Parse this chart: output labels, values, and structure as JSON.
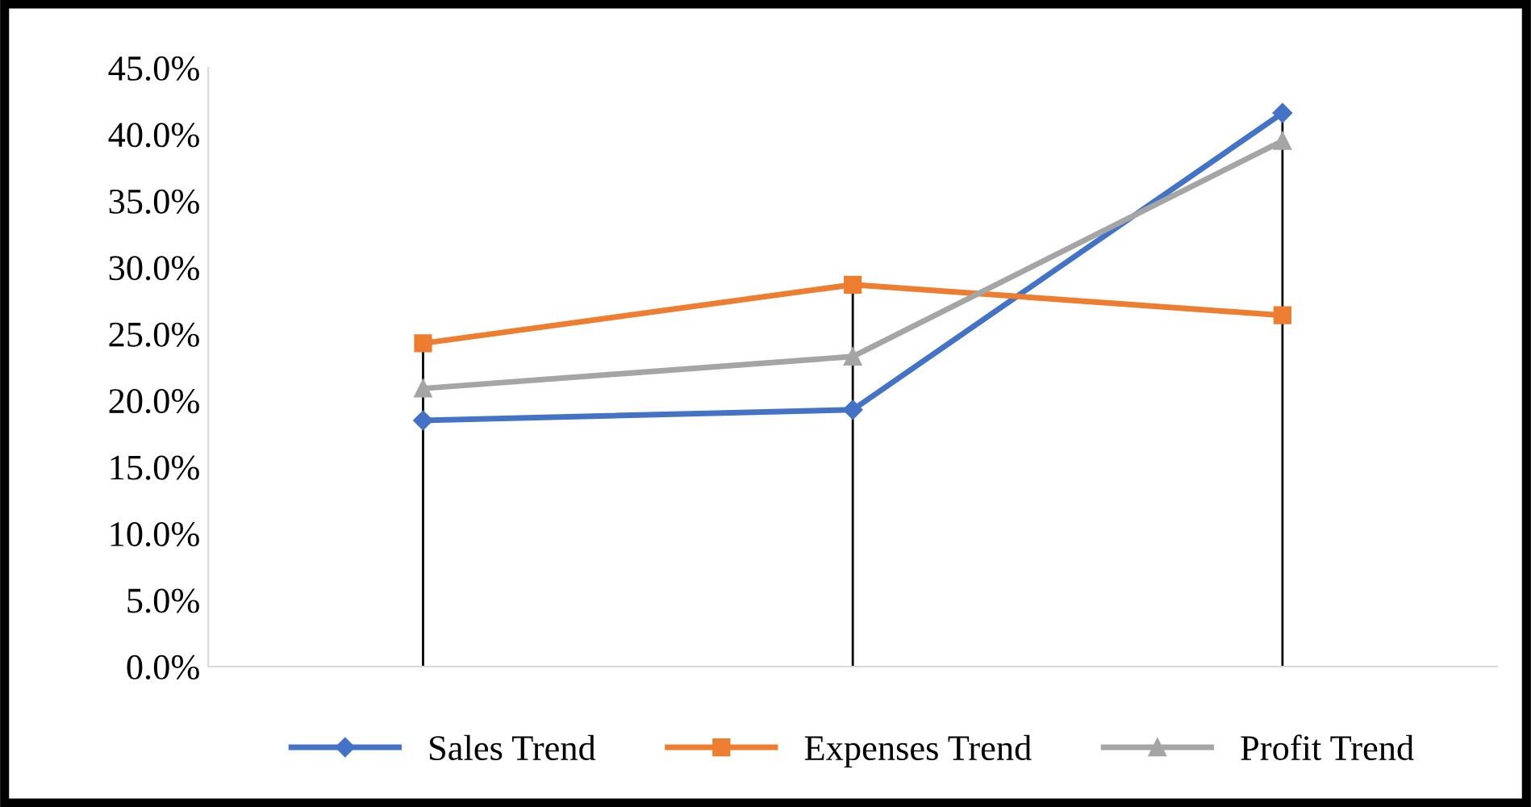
{
  "chart_data": {
    "type": "line",
    "categories": [
      null,
      null,
      null
    ],
    "series": [
      {
        "name": "Sales Trend",
        "color": "#4472c4",
        "marker": "diamond",
        "values": [
          18.5,
          19.3,
          41.6
        ]
      },
      {
        "name": "Expenses Trend",
        "color": "#ed7d31",
        "marker": "square",
        "values": [
          24.3,
          28.7,
          26.4
        ]
      },
      {
        "name": "Profit Trend",
        "color": "#a5a5a5",
        "marker": "triangle",
        "values": [
          20.9,
          23.3,
          39.5
        ]
      }
    ],
    "ylim": [
      0,
      45
    ],
    "yticks": [
      {
        "value": 0,
        "label": "0.0%"
      },
      {
        "value": 5,
        "label": "5.0%"
      },
      {
        "value": 10,
        "label": "10.0%"
      },
      {
        "value": 15,
        "label": "15.0%"
      },
      {
        "value": 20,
        "label": "20.0%"
      },
      {
        "value": 25,
        "label": "25.0%"
      },
      {
        "value": 30,
        "label": "30.0%"
      },
      {
        "value": 35,
        "label": "35.0%"
      },
      {
        "value": 40,
        "label": "40.0%"
      },
      {
        "value": 45,
        "label": "45.0%"
      }
    ],
    "grid": false,
    "legend": "bottom"
  }
}
